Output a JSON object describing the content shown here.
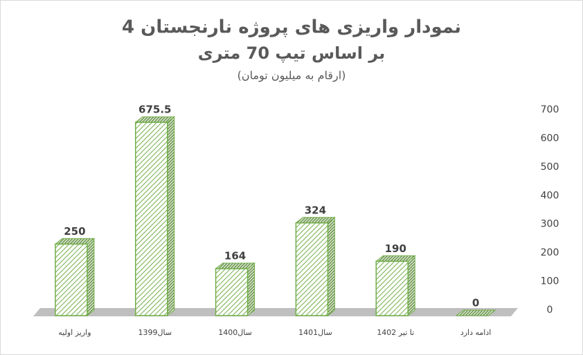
{
  "chart_data": {
    "type": "bar",
    "title": "نمودار واریزی های پروژه نارنجستان 4",
    "subtitle": "بر اساس تیپ 70 متری",
    "note": "(ارقام به میلیون تومان)",
    "categories": [
      "واریز اولیه",
      "سال1399",
      "سال1400",
      "سال1401",
      "تا تیر 1402",
      "ادامه دارد"
    ],
    "values": [
      250,
      675.5,
      164,
      324,
      190,
      0
    ],
    "color": "#70ad47",
    "ylim": [
      0,
      700
    ],
    "yticks": [
      0,
      100,
      200,
      300,
      400,
      500,
      600,
      700
    ],
    "grid": false
  }
}
